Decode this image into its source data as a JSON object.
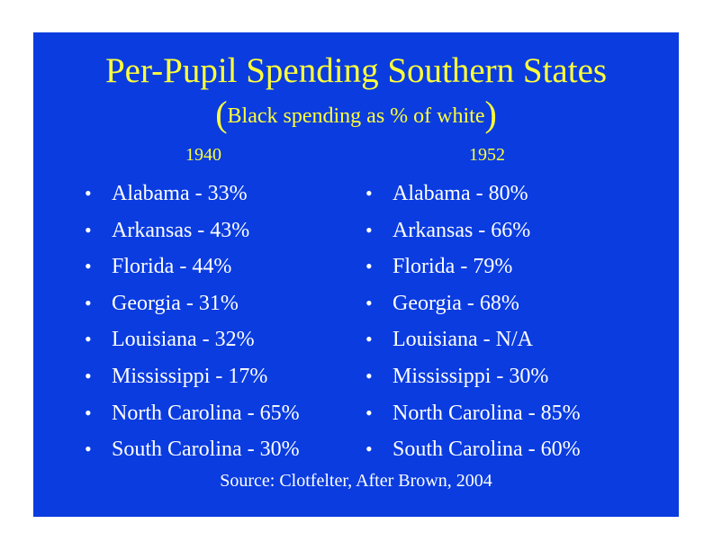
{
  "slide": {
    "title": "Per-Pupil Spending Southern States",
    "subtitle_open": "(",
    "subtitle": "Black spending as % of white",
    "subtitle_close": ")",
    "source": "Source: Clotfelter, After Brown, 2004",
    "colors": {
      "background": "#0a3ce0",
      "title": "#ffff3a",
      "body_text": "#ffffff"
    }
  },
  "columns": [
    {
      "year": "1940",
      "items": [
        "Alabama - 33%",
        "Arkansas - 43%",
        "Florida - 44%",
        "Georgia - 31%",
        "Louisiana - 32%",
        "Mississippi - 17%",
        "North Carolina - 65%",
        "South Carolina - 30%"
      ]
    },
    {
      "year": "1952",
      "items": [
        "Alabama - 80%",
        "Arkansas - 66%",
        "Florida - 79%",
        "Georgia - 68%",
        "Louisiana - N/A",
        "Mississippi - 30%",
        "North Carolina - 85%",
        "South Carolina - 60%"
      ]
    }
  ],
  "bullet_char": "•"
}
